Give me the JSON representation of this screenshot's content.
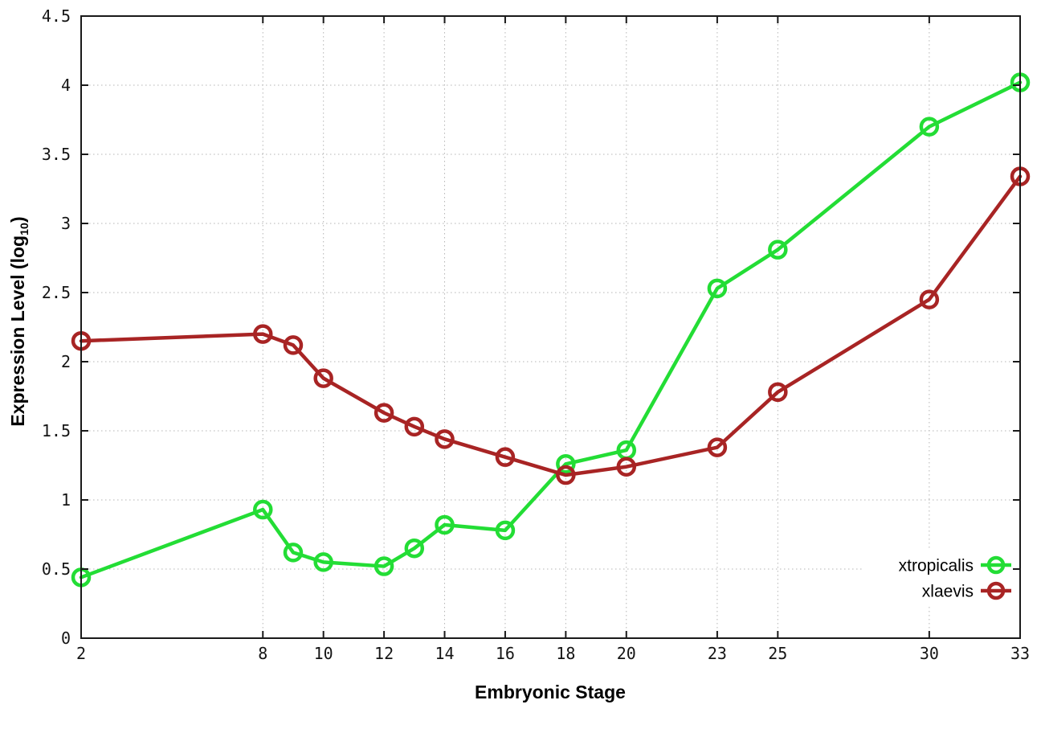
{
  "chart_data": {
    "type": "line",
    "title": "",
    "xlabel": "Embryonic Stage",
    "ylabel": "Expression Level (log10)",
    "ylabel_prefix": "Expression Level (log",
    "ylabel_sub": "10",
    "ylabel_suffix": ")",
    "x": [
      2,
      8,
      9,
      10,
      12,
      13,
      14,
      16,
      18,
      20,
      23,
      25,
      30,
      33
    ],
    "series": [
      {
        "name": "xtropicalis",
        "color": "#23dd35",
        "values": [
          0.44,
          0.93,
          0.62,
          0.55,
          0.52,
          0.65,
          0.82,
          0.78,
          1.26,
          1.36,
          2.53,
          2.81,
          3.7,
          4.02
        ]
      },
      {
        "name": "xlaevis",
        "color": "#a82424",
        "values": [
          2.15,
          2.2,
          2.12,
          1.88,
          1.63,
          1.53,
          1.44,
          1.31,
          1.18,
          1.24,
          1.38,
          1.78,
          2.45,
          3.34
        ]
      }
    ],
    "xticks": [
      2,
      8,
      10,
      12,
      14,
      16,
      18,
      20,
      23,
      25,
      30,
      33
    ],
    "yticks": [
      0,
      0.5,
      1,
      1.5,
      2,
      2.5,
      3,
      3.5,
      4,
      4.5
    ],
    "xlim": [
      2,
      33
    ],
    "ylim": [
      0,
      4.5
    ],
    "grid": true,
    "grid_style": "dotted",
    "legend_position": "bottom-right",
    "marker": "open-circle",
    "axis_color": "#1a1a1a",
    "grid_color": "#b5b5b5",
    "tick_label_color": "#151515"
  }
}
